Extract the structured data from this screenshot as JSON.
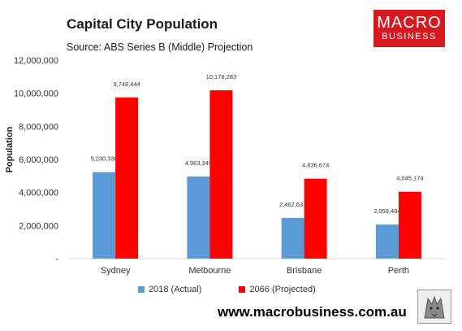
{
  "header": {
    "title": "Capital City Population",
    "subtitle": "Source: ABS Series B (Middle) Projection"
  },
  "logo": {
    "line1": "MACRO",
    "line2": "BUSINESS"
  },
  "footer": {
    "website": "www.macrobusiness.com.au"
  },
  "chart_data": {
    "type": "bar",
    "categories": [
      "Sydney",
      "Melbourne",
      "Brisbane",
      "Perth"
    ],
    "series": [
      {
        "name": "2018 (Actual)",
        "color": "#5b9bd5",
        "values": [
          5230330,
          4963349,
          2462637,
          2059484
        ],
        "labels": [
          "5,230,330",
          "4,963,349",
          "2,462,637",
          "2,059,484"
        ]
      },
      {
        "name": "2066 (Projected)",
        "color": "#ff0000",
        "values": [
          9748444,
          10178283,
          4836674,
          4045174
        ],
        "labels": [
          "9,748,444",
          "10,178,283",
          "4,836,674",
          "4,045,174"
        ]
      }
    ],
    "ylabel": "Population",
    "ylim": [
      0,
      12000000
    ],
    "yticks": [
      0,
      2000000,
      4000000,
      6000000,
      8000000,
      10000000,
      12000000
    ],
    "ytick_labels": [
      "-",
      "2,000,000",
      "4,000,000",
      "6,000,000",
      "8,000,000",
      "10,000,000",
      "12,000,000"
    ],
    "grid": false,
    "legend_position": "bottom"
  }
}
